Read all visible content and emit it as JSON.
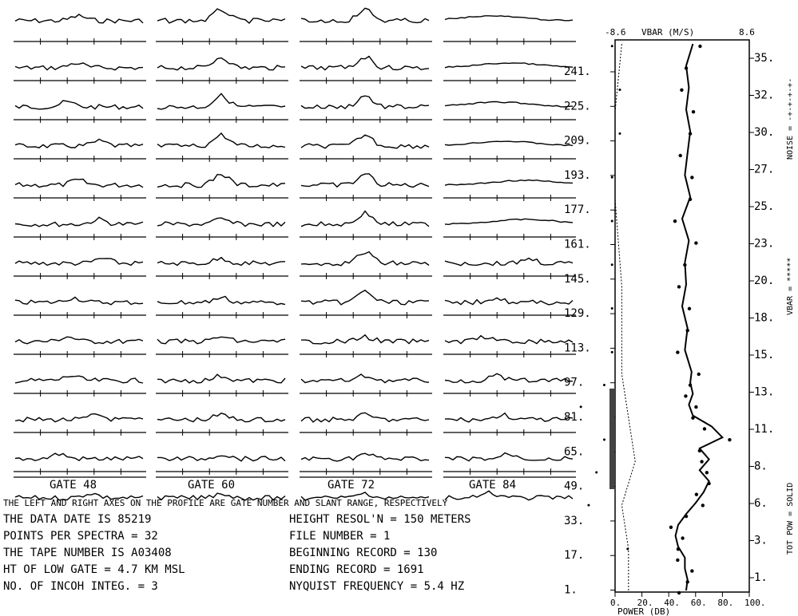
{
  "spectra_panel": {
    "gate_labels": [
      "GATE  48",
      "GATE  60",
      "GATE  72",
      "GATE  84"
    ],
    "rows": 12,
    "caption": "THE LEFT AND RIGHT AXES ON THE PROFILE ARE GATE NUMBER AND SLANT RANGE, RESPECTIVELY"
  },
  "info_left": [
    "THE DATA DATE IS 85219",
    "POINTS PER SPECTRA =  32",
    "THE TAPE NUMBER IS A03408",
    "HT OF LOW GATE =  4.7 KM MSL",
    "NO. OF INCOH INTEG. =   3"
  ],
  "info_right": [
    "HEIGHT RESOL'N = 150  METERS",
    "FILE NUMBER =   1",
    "BEGINNING RECORD =  130",
    "ENDING RECORD = 1691",
    "NYQUIST FREQUENCY =  5.4 HZ"
  ],
  "profile": {
    "top_left": "-8.6",
    "top_title": "VBAR  (M/S)",
    "top_right": "8.6",
    "left_ticks": [
      "241.",
      "225.",
      "209.",
      "193.",
      "177.",
      "161.",
      "145.",
      "129.",
      "113.",
      "97.",
      "81.",
      "65.",
      "49.",
      "33.",
      "17.",
      "1."
    ],
    "right_ticks": [
      "35.",
      "32.",
      "30.",
      "27.",
      "25.",
      "23.",
      "20.",
      "18.",
      "15.",
      "13.",
      "11.",
      "8.",
      "6.",
      "3.",
      "1."
    ],
    "bottom_ticks": [
      "0.",
      "20.",
      "40.",
      "60.",
      "80.",
      "100."
    ],
    "bottom_title": "POWER  (DB)",
    "legend": [
      "NOISE = -+-+-+-+-",
      "VBAR = *****",
      "TOT POW = SOLID"
    ]
  },
  "chart_data": [
    {
      "type": "line",
      "title": "",
      "description_series": "Doppler spectra for range gates 48, 60, 72, 84 (12 stacked rows per column)",
      "categories": [
        "GATE  48",
        "GATE  60",
        "GATE  72",
        "GATE  84"
      ]
    },
    {
      "type": "line",
      "xlabel": "POWER  (DB)",
      "xlim": [
        0,
        100
      ],
      "x2label": "VBAR  (M/S)",
      "x2lim": [
        -8.6,
        8.6
      ],
      "ylabel_left_range": [
        1,
        241
      ],
      "ylabel_right_range": [
        1,
        35
      ],
      "series": [
        {
          "name": "TOT POW",
          "style": "solid",
          "y": [
            1,
            6,
            11,
            16,
            21,
            26,
            31,
            36,
            41,
            46,
            51,
            56,
            61,
            66,
            71,
            76,
            81,
            86,
            91,
            96,
            101,
            111,
            121,
            131,
            141,
            151,
            161,
            171,
            181,
            191,
            201,
            211,
            221,
            231,
            241,
            251
          ],
          "x": [
            53,
            54,
            52,
            52,
            47,
            45,
            47,
            53,
            60,
            66,
            70,
            63,
            70,
            63,
            80,
            72,
            58,
            55,
            58,
            56,
            57,
            52,
            54,
            50,
            53,
            52,
            55,
            50,
            56,
            52,
            54,
            56,
            53,
            55,
            53,
            58
          ]
        },
        {
          "name": "NOISE",
          "style": "dotted-dash",
          "y": [
            1,
            20,
            40,
            60,
            80,
            100,
            140,
            180,
            220,
            251
          ],
          "x": [
            2,
            2,
            1,
            3,
            2,
            1,
            1,
            0,
            0,
            1
          ]
        },
        {
          "name": "VBAR",
          "style": "dots",
          "y": [
            20,
            40,
            55,
            70,
            85,
            95,
            110,
            130,
            150,
            170,
            190,
            210,
            230,
            250
          ],
          "x": [
            1,
            -4,
            -3,
            -2,
            -5,
            -2,
            -1,
            -1,
            -1,
            -1,
            -1,
            0,
            0,
            -1
          ]
        }
      ]
    }
  ]
}
